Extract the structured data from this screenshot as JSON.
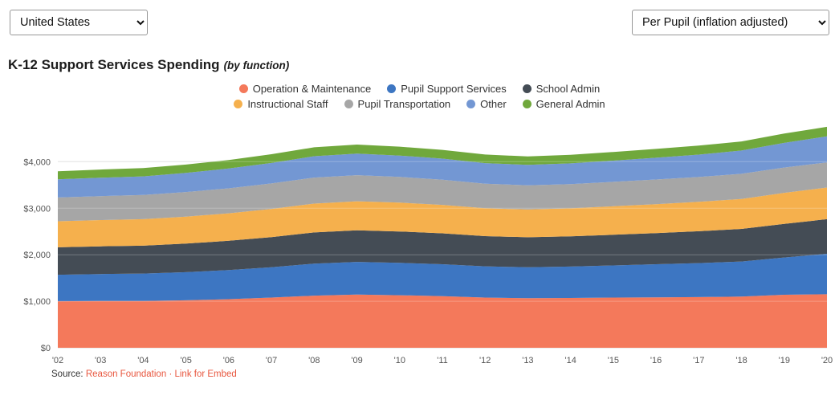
{
  "controls": {
    "region_value": "United States",
    "metric_value": "Per Pupil (inflation adjusted)"
  },
  "title": {
    "main": "K-12 Support Services Spending",
    "sub": "(by function)"
  },
  "chart_data": {
    "type": "area",
    "stacked": true,
    "title": "K-12 Support Services Spending (by function)",
    "x": [
      "'02",
      "'03",
      "'04",
      "'05",
      "'06",
      "'07",
      "'08",
      "'09",
      "'10",
      "'11",
      "'12",
      "'13",
      "'14",
      "'15",
      "'16",
      "'17",
      "'18",
      "'19",
      "'20"
    ],
    "series": [
      {
        "name": "Operation & Maintenance",
        "color": "#f4795b",
        "values": [
          1000,
          1005,
          1005,
          1020,
          1045,
          1080,
          1120,
          1145,
          1130,
          1110,
          1080,
          1065,
          1070,
          1080,
          1085,
          1090,
          1100,
          1140,
          1150
        ]
      },
      {
        "name": "Pupil Support Services",
        "color": "#3d76c2",
        "values": [
          570,
          580,
          590,
          605,
          625,
          650,
          690,
          700,
          695,
          685,
          670,
          665,
          675,
          690,
          710,
          730,
          755,
          800,
          870
        ]
      },
      {
        "name": "School Admin",
        "color": "#444c55",
        "values": [
          590,
          595,
          600,
          615,
          630,
          650,
          670,
          680,
          675,
          665,
          650,
          645,
          650,
          660,
          670,
          685,
          700,
          725,
          745
        ]
      },
      {
        "name": "Instructional Staff",
        "color": "#f5b04d",
        "values": [
          560,
          565,
          570,
          580,
          590,
          605,
          620,
          625,
          620,
          612,
          600,
          598,
          602,
          612,
          622,
          632,
          645,
          665,
          680
        ]
      },
      {
        "name": "Pupil Transportation",
        "color": "#a6a6a6",
        "values": [
          510,
          515,
          520,
          528,
          538,
          548,
          558,
          560,
          552,
          542,
          528,
          520,
          522,
          526,
          530,
          534,
          540,
          545,
          540
        ]
      },
      {
        "name": "Other",
        "color": "#7397d3",
        "values": [
          390,
          395,
          400,
          410,
          425,
          440,
          460,
          465,
          460,
          452,
          442,
          438,
          445,
          455,
          468,
          482,
          500,
          530,
          560
        ]
      },
      {
        "name": "General Admin",
        "color": "#70a83c",
        "values": [
          175,
          176,
          178,
          180,
          184,
          188,
          192,
          194,
          192,
          188,
          184,
          182,
          184,
          186,
          190,
          193,
          196,
          200,
          205
        ]
      }
    ],
    "xlabel": "",
    "ylabel": "",
    "ylim": [
      0,
      4800
    ],
    "yticks": [
      0,
      1000,
      2000,
      3000,
      4000
    ],
    "ytick_labels": [
      "$0",
      "$1,000",
      "$2,000",
      "$3,000",
      "$4,000"
    ],
    "grid": true,
    "legend_position": "top"
  },
  "legend": {
    "rows": [
      [
        0,
        1,
        2
      ],
      [
        3,
        4,
        5,
        6
      ]
    ]
  },
  "source": {
    "label": "Source:",
    "link1": "Reason Foundation",
    "separator": "·",
    "link2": "Link for Embed"
  }
}
